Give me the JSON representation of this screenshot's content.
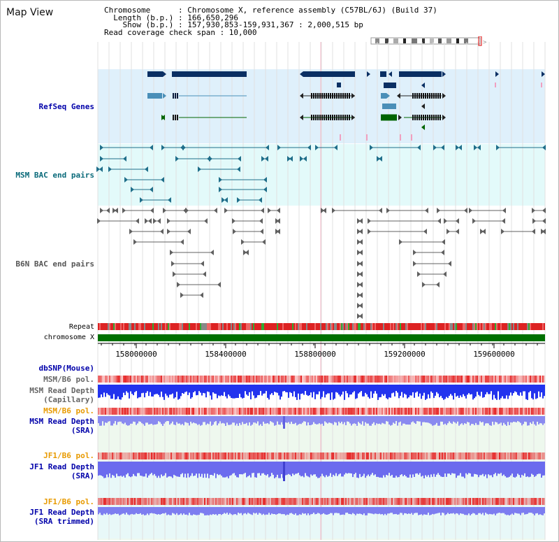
{
  "view": {
    "title": "Map View",
    "info_lines": [
      {
        "key": "Chromosome",
        "value": "Chromosome X, reference assembly (C57BL/6J) (Build 37)"
      },
      {
        "key": "Length (b.p.)",
        "value": "166,650,296"
      },
      {
        "key": "Show (b.p.)",
        "value": "157,930,853-159,931,367 : 2,000,515 bp"
      },
      {
        "key": "Read coverage check span",
        "value": "10,000"
      }
    ],
    "info_text": [
      "Chromosome      : Chromosome X, reference assembly (C57BL/6J) (Build 37)",
      "  Length (b.p.) : 166,650,296",
      "    Show (b.p.) : 157,930,853-159,931,367 : 2,000,515 bp",
      "Read coverage check span : 10,000"
    ]
  },
  "tracks": {
    "refseq_label": "RefSeq Genes",
    "msm_bac_label": "MSM BAC end pairs",
    "b6n_bac_label": "B6N BAC end pairs",
    "repeat_label": "Repeat",
    "chromosome_label": "chromosome X",
    "dbsnp_label": "dbSNP(Mouse)",
    "msm_b6_pol_1": "MSM/B6 pol.",
    "msm_read_depth_cap": [
      "MSM Read Depth",
      "(Capillary)"
    ],
    "msm_b6_pol_2": "MSM/B6 pol.",
    "msm_read_depth_sra": [
      "MSM Read Depth",
      "(SRA)"
    ],
    "jf1_b6_pol_1": "JF1/B6 pol.",
    "jf1_read_depth_sra": [
      "JF1 Read Depth",
      "(SRA)"
    ],
    "jf1_b6_pol_2": "JF1/B6 pol.",
    "jf1_read_depth_trim": [
      "JF1 Read Depth",
      "(SRA trimmed)"
    ]
  },
  "axis": {
    "ticks": [
      "158000000",
      "158400000",
      "158800000",
      "159200000",
      "159600000"
    ]
  },
  "colors": {
    "refseq_bg": "#dff0fb",
    "msm_bg": "#e3fafa",
    "gene_dark": "#0a2f63",
    "gene_light": "#4a8fb8",
    "gene_green": "#006400",
    "msm_pair": "#1f6e8a",
    "b6n_pair": "#606060",
    "chrom_bar": "#007000",
    "depth_blue": "#2233ee",
    "depth_light_blue": "#6b6bee",
    "label_blue": "#0000aa",
    "label_orange": "#e89a00"
  }
}
